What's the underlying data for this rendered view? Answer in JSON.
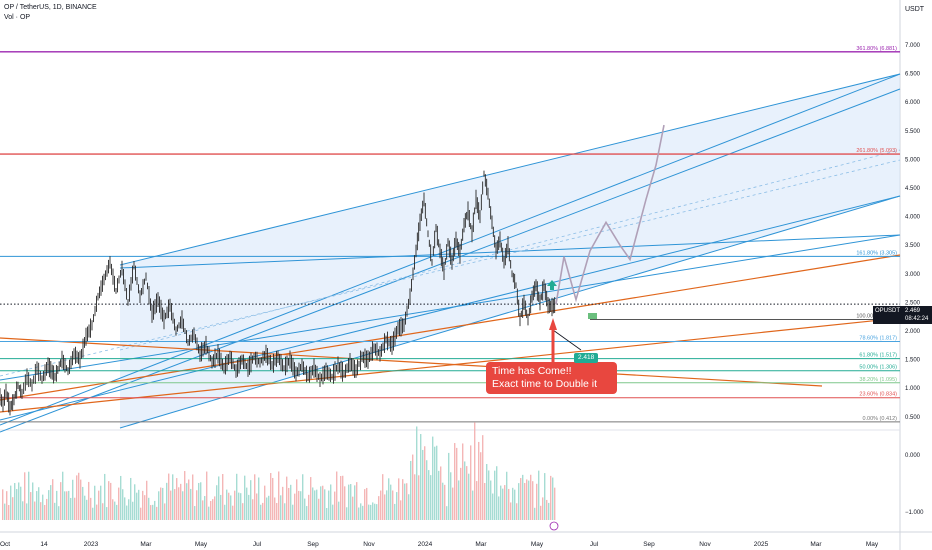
{
  "header": {
    "symbol_line": "OP / TetherUS, 1D, BINANCE",
    "volume_line": "Vol · OP",
    "currency": "USDT"
  },
  "callout": {
    "line1": "Time has Come!!",
    "line2": "Exact time to Double it"
  },
  "price_tag": "2.418",
  "current": {
    "symbol": "OPUSDT",
    "price": "2.469",
    "countdown": "08:42:24"
  },
  "colors": {
    "channel_blue": "#2f94d6",
    "channel_fill": "#d6e6fa",
    "trend_orange": "#e0661b",
    "fib_red": "#e05151",
    "fib_purple": "#9c27b0",
    "callout_red": "#e8473f",
    "up_green": "#22ab94"
  },
  "chart_data": {
    "type": "line",
    "title": "OP / TetherUS, 1D, BINANCE",
    "xlabel": "",
    "ylabel": "USDT",
    "ylim": [
      0.25,
      7.25
    ],
    "y_ticks": [
      "7.000",
      "6.500",
      "6.000",
      "5.500",
      "5.000",
      "4.500",
      "4.000",
      "3.500",
      "3.000",
      "2.500",
      "2.000",
      "1.500",
      "1.000",
      "0.500"
    ],
    "volume_ticks": [
      "0.000",
      "−1.000"
    ],
    "x_ticks": [
      "Oct",
      "14",
      "2023",
      "Mar",
      "May",
      "Jul",
      "Sep",
      "Nov",
      "2024",
      "Mar",
      "May",
      "Jul",
      "Sep",
      "Nov",
      "2025",
      "Mar",
      "May"
    ],
    "fib_levels": [
      {
        "label": "361.80% (6.881)",
        "value": 6.881
      },
      {
        "label": "261.80% (5.093)",
        "value": 5.093
      },
      {
        "label": "161.80% (3.305)",
        "value": 3.305
      },
      {
        "label": "100.00% (2.200)",
        "value": 2.2
      },
      {
        "label": "78.60% (1.817)",
        "value": 1.817
      },
      {
        "label": "61.80% (1.517)",
        "value": 1.517
      },
      {
        "label": "50.00% (1.306)",
        "value": 1.306
      },
      {
        "label": "38.20% (1.095)",
        "value": 1.095
      },
      {
        "label": "23.60% (0.834)",
        "value": 0.834
      },
      {
        "label": "0.00% (0.412)",
        "value": 0.412
      }
    ],
    "price_path": [
      [
        0,
        0.85
      ],
      [
        3,
        0.72
      ],
      [
        6,
        0.95
      ],
      [
        10,
        0.65
      ],
      [
        14,
        0.8
      ],
      [
        18,
        1.05
      ],
      [
        22,
        0.9
      ],
      [
        27,
        1.2
      ],
      [
        32,
        1.05
      ],
      [
        37,
        1.35
      ],
      [
        42,
        1.15
      ],
      [
        48,
        1.4
      ],
      [
        55,
        1.2
      ],
      [
        62,
        1.5
      ],
      [
        68,
        1.3
      ],
      [
        74,
        1.6
      ],
      [
        80,
        1.5
      ],
      [
        86,
        1.9
      ],
      [
        92,
        2.1
      ],
      [
        98,
        2.6
      ],
      [
        104,
        2.9
      ],
      [
        110,
        3.2
      ],
      [
        116,
        2.7
      ],
      [
        122,
        3.1
      ],
      [
        128,
        2.5
      ],
      [
        134,
        3.15
      ],
      [
        140,
        2.6
      ],
      [
        146,
        2.95
      ],
      [
        152,
        2.3
      ],
      [
        158,
        2.55
      ],
      [
        164,
        2.2
      ],
      [
        170,
        2.45
      ],
      [
        176,
        2.0
      ],
      [
        182,
        2.2
      ],
      [
        188,
        1.8
      ],
      [
        194,
        1.95
      ],
      [
        200,
        1.6
      ],
      [
        206,
        1.75
      ],
      [
        212,
        1.45
      ],
      [
        218,
        1.6
      ],
      [
        224,
        1.35
      ],
      [
        230,
        1.55
      ],
      [
        236,
        1.3
      ],
      [
        242,
        1.5
      ],
      [
        248,
        1.35
      ],
      [
        254,
        1.55
      ],
      [
        260,
        1.45
      ],
      [
        266,
        1.6
      ],
      [
        272,
        1.4
      ],
      [
        278,
        1.55
      ],
      [
        284,
        1.35
      ],
      [
        290,
        1.5
      ],
      [
        296,
        1.25
      ],
      [
        302,
        1.4
      ],
      [
        308,
        1.2
      ],
      [
        314,
        1.35
      ],
      [
        320,
        1.15
      ],
      [
        326,
        1.3
      ],
      [
        332,
        1.2
      ],
      [
        338,
        1.4
      ],
      [
        344,
        1.25
      ],
      [
        350,
        1.45
      ],
      [
        356,
        1.3
      ],
      [
        362,
        1.55
      ],
      [
        368,
        1.5
      ],
      [
        374,
        1.7
      ],
      [
        380,
        1.6
      ],
      [
        386,
        1.85
      ],
      [
        392,
        1.75
      ],
      [
        398,
        2.05
      ],
      [
        404,
        2.1
      ],
      [
        410,
        2.6
      ],
      [
        416,
        3.4
      ],
      [
        420,
        3.9
      ],
      [
        424,
        4.3
      ],
      [
        428,
        3.7
      ],
      [
        432,
        3.2
      ],
      [
        436,
        3.8
      ],
      [
        440,
        3.4
      ],
      [
        444,
        3.05
      ],
      [
        448,
        3.55
      ],
      [
        452,
        3.2
      ],
      [
        456,
        3.6
      ],
      [
        460,
        3.35
      ],
      [
        464,
        3.85
      ],
      [
        468,
        4.1
      ],
      [
        472,
        3.7
      ],
      [
        476,
        4.3
      ],
      [
        480,
        4.0
      ],
      [
        484,
        4.75
      ],
      [
        488,
        4.4
      ],
      [
        492,
        3.9
      ],
      [
        496,
        3.4
      ],
      [
        500,
        3.6
      ],
      [
        504,
        3.2
      ],
      [
        508,
        3.5
      ],
      [
        512,
        3.0
      ],
      [
        516,
        2.8
      ],
      [
        520,
        2.2
      ],
      [
        524,
        2.5
      ],
      [
        528,
        2.2
      ],
      [
        532,
        2.6
      ],
      [
        536,
        2.8
      ],
      [
        540,
        2.5
      ],
      [
        544,
        2.8
      ],
      [
        548,
        2.45
      ],
      [
        552,
        2.42
      ],
      [
        556,
        2.47
      ]
    ],
    "projection_path": [
      [
        556,
        2.47
      ],
      [
        564,
        3.3
      ],
      [
        576,
        2.55
      ],
      [
        590,
        3.4
      ],
      [
        606,
        3.9
      ],
      [
        620,
        3.5
      ],
      [
        630,
        3.25
      ],
      [
        646,
        4.3
      ],
      [
        656,
        4.9
      ],
      [
        664,
        5.6
      ]
    ],
    "annotations": [
      "Time has Come!!",
      "Exact time to Double it",
      "2.418"
    ],
    "current_price": 2.469
  }
}
